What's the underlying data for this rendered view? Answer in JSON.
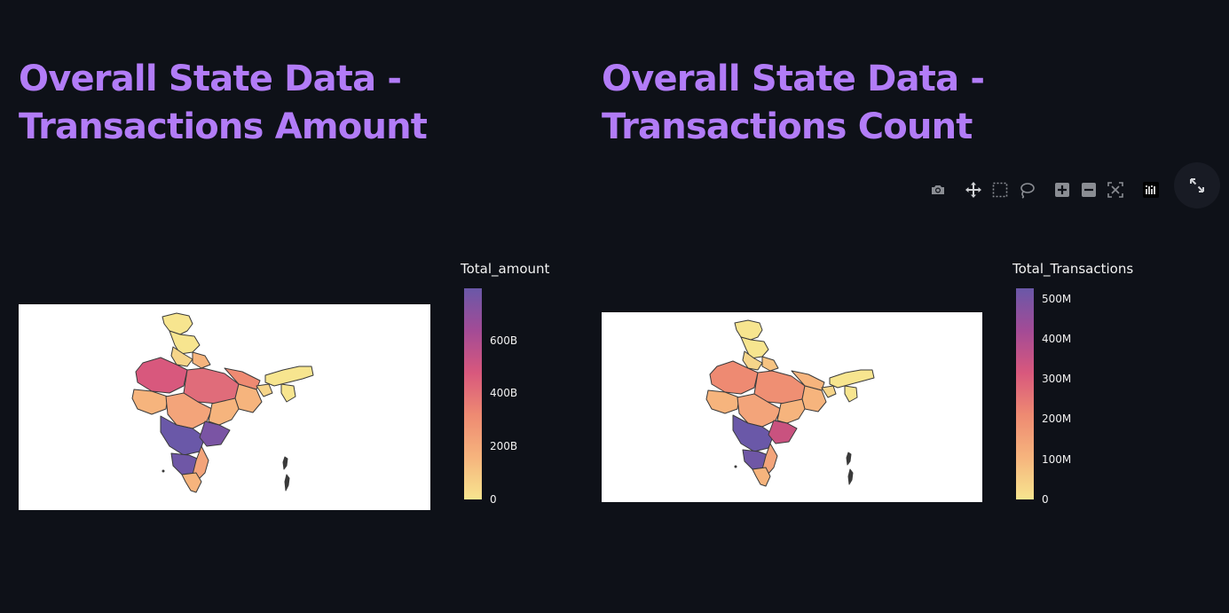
{
  "left_chart": {
    "title": "Overall State Data - Transactions Amount",
    "colorbar_title": "Total_amount",
    "ticks": [
      "600B",
      "400B",
      "200B",
      "0"
    ]
  },
  "right_chart": {
    "title": "Overall State Data - Transactions Count",
    "colorbar_title": "Total_Transactions",
    "ticks": [
      "500M",
      "400M",
      "300M",
      "200M",
      "100M",
      "0"
    ]
  },
  "modebar": {
    "icons": [
      "camera-icon",
      "pan-icon",
      "box-select-icon",
      "lasso-icon",
      "zoom-in-icon",
      "zoom-out-icon",
      "autoscale-icon",
      "plotly-logo-icon"
    ]
  },
  "fullscreen": {
    "icon": "expand-icon"
  },
  "colors": {
    "background": "#0e1118",
    "title": "#b27cf7",
    "map_border": "#3a3a3a",
    "scale": [
      "#f7e58f",
      "#f6b47d",
      "#ee8a72",
      "#d8587d",
      "#a34b96",
      "#6a58a8"
    ]
  },
  "chart_data": [
    {
      "type": "choropleth",
      "title": "Overall State Data - Transactions Amount",
      "colorbar_title": "Total_amount",
      "colorbar_ticks": [
        "0",
        "200B",
        "400B",
        "600B"
      ],
      "color_range": [
        0,
        800000000000
      ]
    },
    {
      "type": "choropleth",
      "title": "Overall State Data - Transactions Count",
      "colorbar_title": "Total_Transactions",
      "colorbar_ticks": [
        "0",
        "100M",
        "200M",
        "300M",
        "400M",
        "500M"
      ],
      "color_range": [
        0,
        530000000
      ]
    }
  ]
}
